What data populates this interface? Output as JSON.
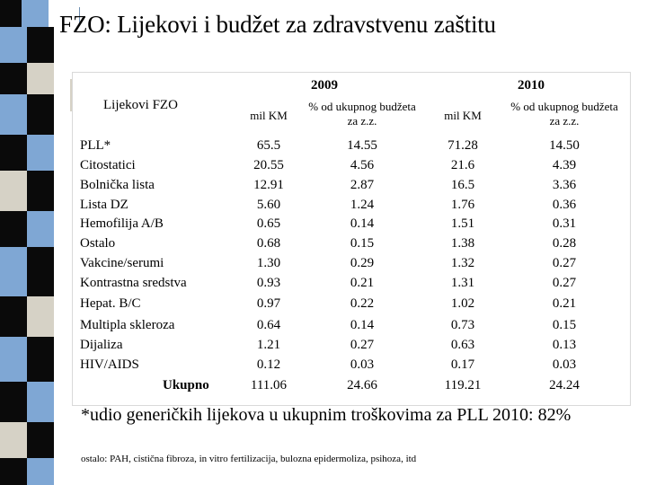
{
  "title": "FZO: Lijekovi i budžet za zdravstvenu zaštitu",
  "table": {
    "row_header": "Lijekovi FZO",
    "years": [
      "2009",
      "2010"
    ],
    "sub_headers": [
      "mil KM",
      "% od ukupnog budžeta za z.z.",
      "mil KM",
      "% od ukupnog budžeta za z.z."
    ],
    "rows": [
      {
        "label": "PLL*",
        "values": [
          "65.5",
          "14.55",
          "71.28",
          "14.50"
        ]
      },
      {
        "label": "Citostatici",
        "values": [
          "20.55",
          "4.56",
          "21.6",
          "4.39"
        ]
      },
      {
        "label": "Bolnička lista",
        "values": [
          "12.91",
          "2.87",
          "16.5",
          "3.36"
        ]
      },
      {
        "label": "Lista DZ",
        "values": [
          "5.60",
          "1.24",
          "1.76",
          "0.36"
        ]
      },
      {
        "label": "Hemofilija A/B",
        "values": [
          "0.65",
          "0.14",
          "1.51",
          "0.31"
        ]
      },
      {
        "label": "Ostalo",
        "values": [
          "0.68",
          "0.15",
          "1.38",
          "0.28"
        ]
      },
      {
        "label": "Vakcine/serumi",
        "values": [
          "1.30",
          "0.29",
          "1.32",
          "0.27"
        ]
      },
      {
        "label": "Kontrastna sredstva",
        "values": [
          "0.93",
          "0.21",
          "1.31",
          "0.27"
        ]
      },
      {
        "label": "Hepat. B/C",
        "values": [
          "0.97",
          "0.22",
          "1.02",
          "0.21"
        ]
      },
      {
        "label": "Multipla skleroza",
        "values": [
          "0.64",
          "0.14",
          "0.73",
          "0.15"
        ]
      },
      {
        "label": "Dijaliza",
        "values": [
          "1.21",
          "0.27",
          "0.63",
          "0.13"
        ]
      },
      {
        "label": "HIV/AIDS",
        "values": [
          "0.12",
          "0.03",
          "0.17",
          "0.03"
        ]
      },
      {
        "label": "Ukupno",
        "values": [
          "111.06",
          "24.66",
          "119.21",
          "24.24"
        ]
      }
    ]
  },
  "note": "*udio generičkih lijekova u ukupnim troškovima za PLL 2010: 82%",
  "small_note": "ostalo: PAH, cistična fibroza, in vitro fertilizacija, bulozna epidermoliza, psihoza, itd",
  "colors": {
    "strip_black": "#0a0a0a",
    "strip_blue": "#7fa7d4",
    "strip_beige": "#d6d2c6"
  }
}
